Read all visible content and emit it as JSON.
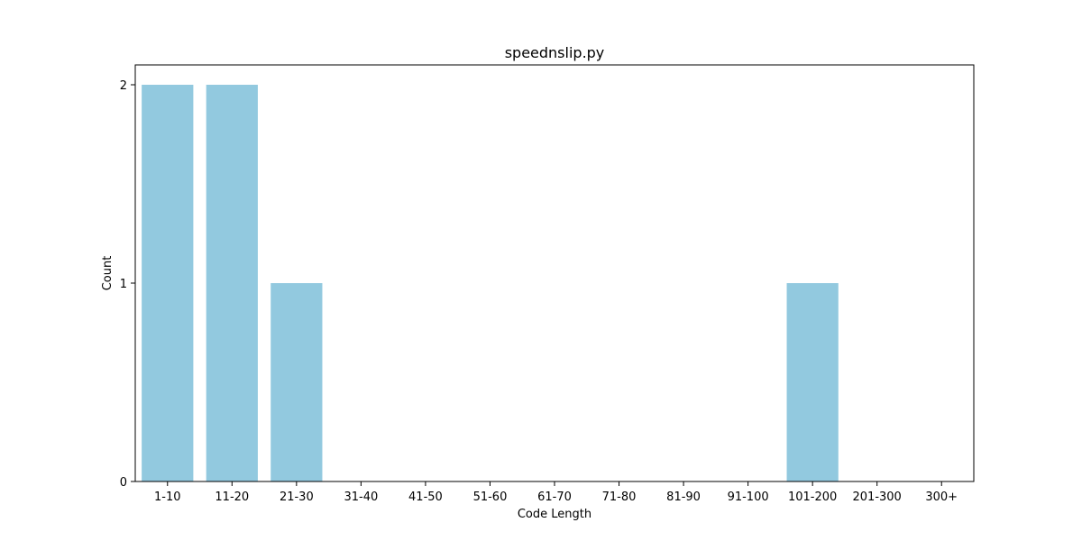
{
  "chart_data": {
    "type": "bar",
    "title": "speednslip.py",
    "xlabel": "Code Length",
    "ylabel": "Count",
    "categories": [
      "1-10",
      "11-20",
      "21-30",
      "31-40",
      "41-50",
      "51-60",
      "61-70",
      "71-80",
      "81-90",
      "91-100",
      "101-200",
      "201-300",
      "300+"
    ],
    "values": [
      2,
      2,
      1,
      0,
      0,
      0,
      0,
      0,
      0,
      0,
      1,
      0,
      0
    ],
    "yticks": [
      0,
      1,
      2
    ],
    "ylim": [
      0,
      2.1
    ],
    "grid": false,
    "bar_color": "#92c9df"
  }
}
